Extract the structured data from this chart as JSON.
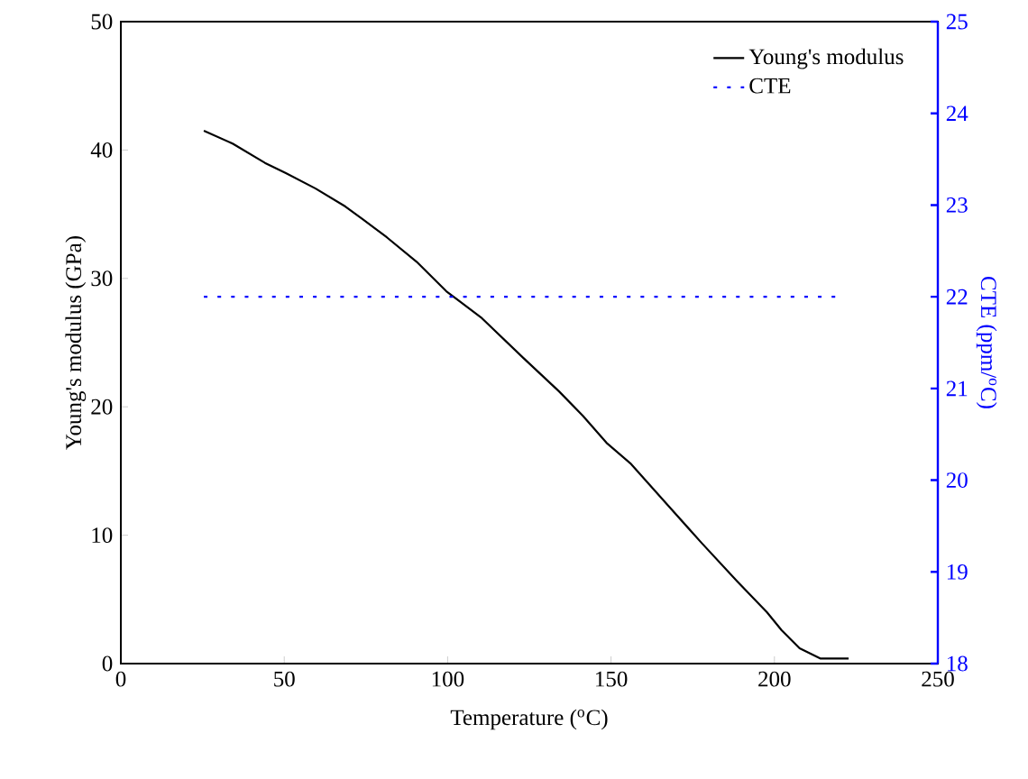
{
  "chart_data": {
    "type": "line",
    "xlabel": "Temperature ($^{o}$C)",
    "ylabel": "Young's modulus (GPa)",
    "y2label": "CTE (ppm/$^{o}$C)",
    "xlim": [
      0,
      250
    ],
    "xticks": [
      0,
      50,
      100,
      150,
      200,
      250
    ],
    "ylim": [
      0,
      50
    ],
    "yticks": [
      0,
      10,
      20,
      30,
      40,
      50
    ],
    "y2lim": [
      18,
      25
    ],
    "y2ticks": [
      18,
      19,
      20,
      21,
      22,
      23,
      24,
      25
    ],
    "legend": "top right",
    "marker": "none",
    "grid": false,
    "series": [
      {
        "name": "Young's modulus",
        "color": "#000000",
        "line_style": "solid",
        "x": [
          25.4,
          34.2,
          44.1,
          50.5,
          59.6,
          68.7,
          74.1,
          81.4,
          90.5,
          99.6,
          110.5,
          123.2,
          134.1,
          141.4,
          148.6,
          155.9,
          166.8,
          177.7,
          188.6,
          197.7,
          202.2,
          207.7,
          214.0,
          222.7
        ],
        "values": [
          41.5,
          40.5,
          39.0,
          38.2,
          37.0,
          35.6,
          34.6,
          33.2,
          31.3,
          29.0,
          26.9,
          23.8,
          21.2,
          19.3,
          17.2,
          15.6,
          12.5,
          9.4,
          6.4,
          4.0,
          2.6,
          1.2,
          0.4,
          0.4
        ]
      },
      {
        "name": "CTE",
        "color": "#0000ff",
        "line_style": "dotted",
        "axis": "y2",
        "x": [
          25.4,
          218.6
        ],
        "values": [
          22,
          22
        ]
      }
    ]
  }
}
